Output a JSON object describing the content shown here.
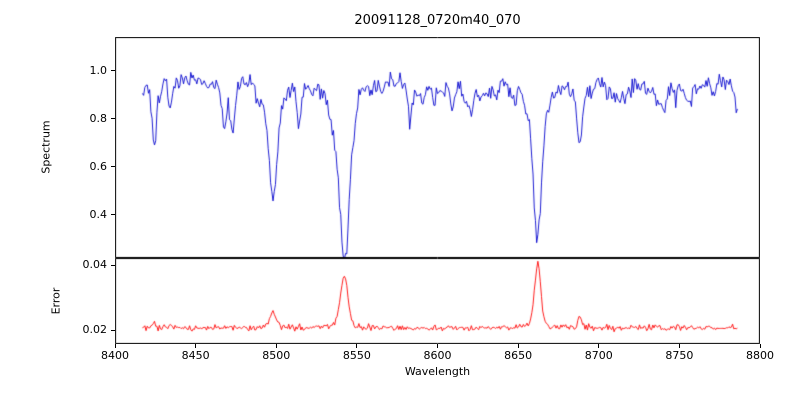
{
  "chart_data": {
    "type": "line",
    "title": "20091128_0720m40_070",
    "xlabel": "Wavelength",
    "xlim": [
      8400,
      8800
    ],
    "xticks": [
      8400,
      8450,
      8500,
      8550,
      8600,
      8650,
      8700,
      8750,
      8800
    ],
    "x_data_range": [
      8417,
      8786
    ],
    "seed": 20091128,
    "legend": "none",
    "grid": false,
    "panels": [
      {
        "name": "spectrum",
        "ylabel": "Spectrum",
        "ylim": [
          0.22,
          1.14
        ],
        "yticks": [
          0.4,
          0.6,
          0.8,
          1.0
        ],
        "ytick_labels": [
          "0.4",
          "0.6",
          "0.8",
          "1.0"
        ],
        "line_color": "#0000cd",
        "continuum": 0.97,
        "noise_sigma": 0.016,
        "weak_line_count": 70,
        "absorption_lines": [
          {
            "center": 8424.5,
            "depth": 0.26,
            "width": 1.2
          },
          {
            "center": 8434.0,
            "depth": 0.12,
            "width": 1.0
          },
          {
            "center": 8468.0,
            "depth": 0.14,
            "width": 1.2
          },
          {
            "center": 8498.0,
            "depth": 0.5,
            "width": 2.6
          },
          {
            "center": 8514.0,
            "depth": 0.16,
            "width": 1.4
          },
          {
            "center": 8542.1,
            "depth": 0.68,
            "width": 3.2
          },
          {
            "center": 8583.0,
            "depth": 0.1,
            "width": 1.2
          },
          {
            "center": 8598.0,
            "depth": 0.1,
            "width": 1.2
          },
          {
            "center": 8621.0,
            "depth": 0.09,
            "width": 1.0
          },
          {
            "center": 8662.1,
            "depth": 0.62,
            "width": 2.6
          },
          {
            "center": 8688.0,
            "depth": 0.24,
            "width": 1.4
          },
          {
            "center": 8713.0,
            "depth": 0.08,
            "width": 1.0
          },
          {
            "center": 8736.0,
            "depth": 0.07,
            "width": 1.0
          },
          {
            "center": 8757.0,
            "depth": 0.07,
            "width": 1.0
          }
        ]
      },
      {
        "name": "error",
        "ylabel": "Error",
        "ylim": [
          0.0157,
          0.0422
        ],
        "yticks": [
          0.02,
          0.04
        ],
        "ytick_labels": [
          "0.02",
          "0.04"
        ],
        "line_color": "#ff0000",
        "baseline": 0.0205,
        "noise_sigma": 0.00045,
        "peaks": [
          {
            "center": 8424.5,
            "amp": 0.0015,
            "width": 1.2
          },
          {
            "center": 8434.0,
            "amp": 0.001,
            "width": 1.0
          },
          {
            "center": 8498.0,
            "amp": 0.0052,
            "width": 2.0
          },
          {
            "center": 8542.1,
            "amp": 0.016,
            "width": 2.2
          },
          {
            "center": 8662.1,
            "amp": 0.02,
            "width": 1.8
          },
          {
            "center": 8688.0,
            "amp": 0.0028,
            "width": 1.2
          }
        ]
      }
    ]
  }
}
